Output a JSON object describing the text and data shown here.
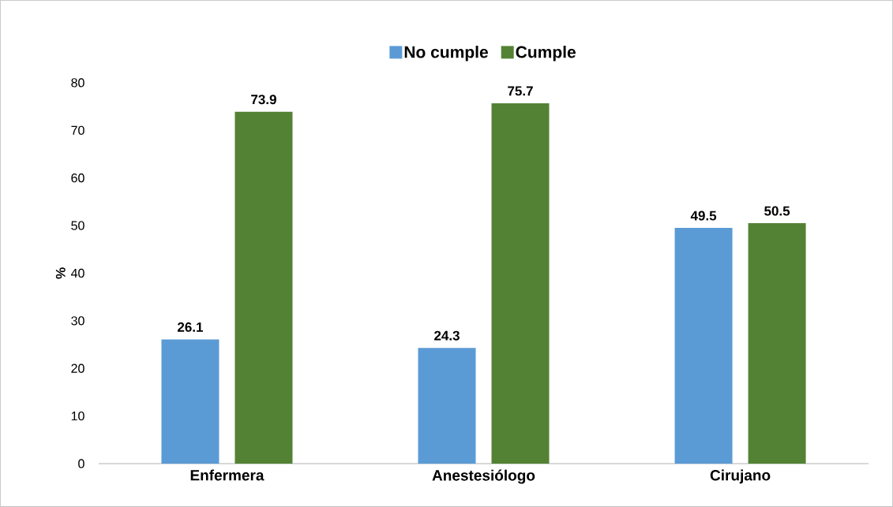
{
  "chart_data": {
    "type": "bar",
    "ylabel": "%",
    "categories": [
      "Enfermera",
      "Anestesiólogo",
      "Cirujano"
    ],
    "series": [
      {
        "name": "No cumple",
        "color": "#5b9bd5",
        "values": [
          26.1,
          24.3,
          49.5
        ]
      },
      {
        "name": "Cumple",
        "color": "#548235",
        "values": [
          73.9,
          75.7,
          50.5
        ]
      }
    ],
    "ylim": [
      0,
      80
    ],
    "yticks": [
      0,
      10,
      20,
      30,
      40,
      50,
      60,
      70,
      80
    ],
    "data_labels": true,
    "legend": "top"
  }
}
